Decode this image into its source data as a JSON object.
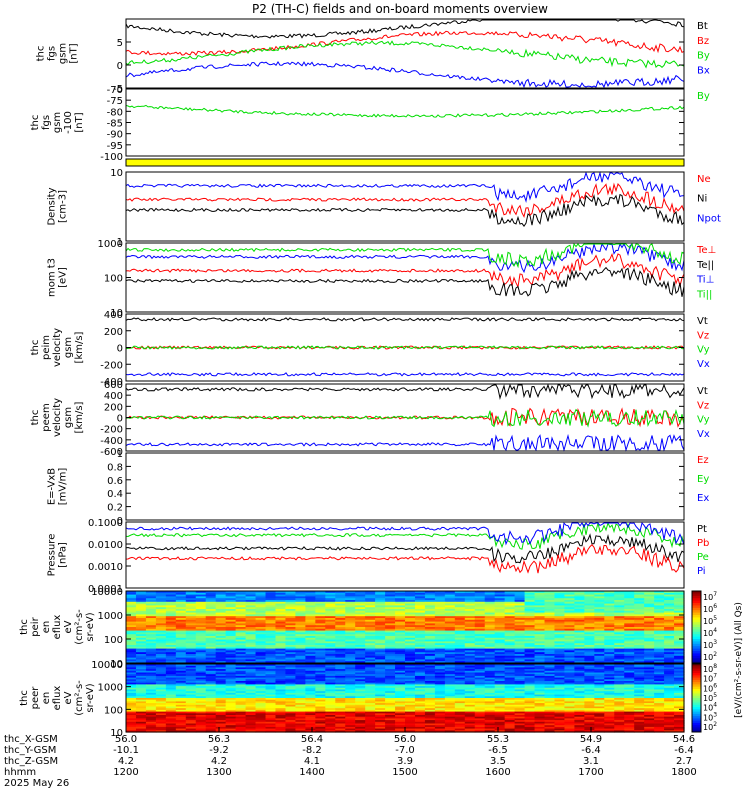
{
  "title": "P2 (TH-C) fields and on-board moments overview",
  "colors": {
    "black": "#000000",
    "red": "#ff0000",
    "green": "#00dd00",
    "blue": "#0000ff",
    "yellow": "#ffff00"
  },
  "chart_data": [
    {
      "type": "line",
      "id": "fgs_main",
      "ylabel": [
        "thc",
        "fgs",
        "gsm",
        "[nT]"
      ],
      "ylim": [
        -5,
        10
      ],
      "ticks": [
        5,
        0,
        -5
      ],
      "series": [
        {
          "name": "Bt",
          "color": "#000000"
        },
        {
          "name": "Bz",
          "color": "#ff0000"
        },
        {
          "name": "By",
          "color": "#00dd00"
        },
        {
          "name": "Bx",
          "color": "#0000ff"
        }
      ]
    },
    {
      "type": "line",
      "id": "fgs_by",
      "ylabel": [
        "thc",
        "fgs",
        "gsm",
        "-100",
        "[nT]"
      ],
      "ylim": [
        -100,
        -70
      ],
      "ticks": [
        -70,
        -75,
        -80,
        -85,
        -90,
        -95,
        -100
      ],
      "series": [
        {
          "name": "By",
          "color": "#00dd00"
        }
      ]
    },
    {
      "type": "bar",
      "id": "flag_bar",
      "ylabel": [],
      "series": []
    },
    {
      "type": "line",
      "id": "density",
      "ylabel": [
        "Density",
        "[cm-3]"
      ],
      "scale": "log",
      "ticks": [
        10,
        1
      ],
      "series": [
        {
          "name": "Ne",
          "color": "#ff0000"
        },
        {
          "name": "Ni",
          "color": "#000000"
        },
        {
          "name": "Npot",
          "color": "#0000ff"
        }
      ]
    },
    {
      "type": "line",
      "id": "temperature",
      "ylabel": [
        "mom t3",
        "[eV]"
      ],
      "scale": "log",
      "ticks": [
        1000,
        100,
        10
      ],
      "series": [
        {
          "name": "Te⊥",
          "color": "#ff0000"
        },
        {
          "name": "Te||",
          "color": "#000000"
        },
        {
          "name": "Ti⊥",
          "color": "#0000ff"
        },
        {
          "name": "Ti||",
          "color": "#00dd00"
        }
      ]
    },
    {
      "type": "line",
      "id": "peim_velocity",
      "ylabel": [
        "thc",
        "peim",
        "velocity",
        "gsm",
        "[km/s]"
      ],
      "ylim": [
        -400,
        400
      ],
      "ticks": [
        400,
        200,
        0,
        -200,
        -400
      ],
      "series": [
        {
          "name": "Vt",
          "color": "#000000"
        },
        {
          "name": "Vz",
          "color": "#ff0000"
        },
        {
          "name": "Vy",
          "color": "#00dd00"
        },
        {
          "name": "Vx",
          "color": "#0000ff"
        }
      ]
    },
    {
      "type": "line",
      "id": "peem_velocity",
      "ylabel": [
        "thc",
        "peem",
        "velocity",
        "gsm",
        "[km/s]"
      ],
      "ylim": [
        -600,
        600
      ],
      "ticks": [
        600,
        400,
        200,
        0,
        -200,
        -400,
        -600
      ],
      "series": [
        {
          "name": "Vt",
          "color": "#000000"
        },
        {
          "name": "Vz",
          "color": "#ff0000"
        },
        {
          "name": "Vy",
          "color": "#00dd00"
        },
        {
          "name": "Vx",
          "color": "#0000ff"
        }
      ]
    },
    {
      "type": "line",
      "id": "efield",
      "ylabel": [
        "E=-VxB",
        "[mV/m]"
      ],
      "ylim": [
        0,
        1
      ],
      "ticks": [
        1.0,
        0.8,
        0.6,
        0.4,
        0.2,
        0.0
      ],
      "series": [
        {
          "name": "Ez",
          "color": "#ff0000"
        },
        {
          "name": "Ey",
          "color": "#00dd00"
        },
        {
          "name": "Ex",
          "color": "#0000ff"
        }
      ]
    },
    {
      "type": "line",
      "id": "pressure",
      "ylabel": [
        "Pressure",
        "[nPa]"
      ],
      "scale": "log",
      "ticks": [
        0.1,
        0.01,
        0.001,
        0.0001
      ],
      "tick_labels": [
        "0.1000",
        "0.0100",
        "0.0010",
        "0.0001"
      ],
      "series": [
        {
          "name": "Pt",
          "color": "#000000"
        },
        {
          "name": "Pb",
          "color": "#ff0000"
        },
        {
          "name": "Pe",
          "color": "#00dd00"
        },
        {
          "name": "Pi",
          "color": "#0000ff"
        }
      ]
    },
    {
      "type": "heatmap",
      "id": "peir",
      "ylabel": [
        "thc",
        "peir",
        "en",
        "eflux",
        "eV",
        "(cm²-s-",
        "sr-eV)"
      ],
      "scale": "log",
      "ticks": [
        10000,
        1000,
        100,
        10
      ]
    },
    {
      "type": "heatmap",
      "id": "peer",
      "ylabel": [
        "thc",
        "peer",
        "en",
        "eflux",
        "eV",
        "(cm²-s-",
        "sr-eV)"
      ],
      "scale": "log",
      "ticks": [
        10000,
        1000,
        100,
        10
      ]
    }
  ],
  "colorbar": {
    "ticks": [
      7,
      6,
      5,
      4,
      3,
      2
    ],
    "ticks_lower": [
      8,
      7,
      6,
      5,
      4,
      3,
      2
    ],
    "label": "[eV/(cm²-s-sr-eV)] (All Qs)"
  },
  "x_axis": {
    "row_labels": [
      "thc_X-GSM",
      "thc_Y-GSM",
      "thc_Z-GSM",
      "hhmm",
      "2025 May 26"
    ],
    "ticks": [
      {
        "x": "56.0",
        "y": "-10.1",
        "z": "4.2",
        "t": "1200"
      },
      {
        "x": "56.3",
        "y": "-9.2",
        "z": "4.2",
        "t": "1300"
      },
      {
        "x": "56.4",
        "y": "-8.2",
        "z": "4.1",
        "t": "1400"
      },
      {
        "x": "56.0",
        "y": "-7.0",
        "z": "3.9",
        "t": "1500"
      },
      {
        "x": "55.3",
        "y": "-6.5",
        "z": "3.5",
        "t": "1600"
      },
      {
        "x": "54.9",
        "y": "-6.4",
        "z": "3.1",
        "t": "1700"
      },
      {
        "x": "54.6",
        "y": "-6.4",
        "z": "2.7",
        "t": "1800"
      }
    ]
  }
}
